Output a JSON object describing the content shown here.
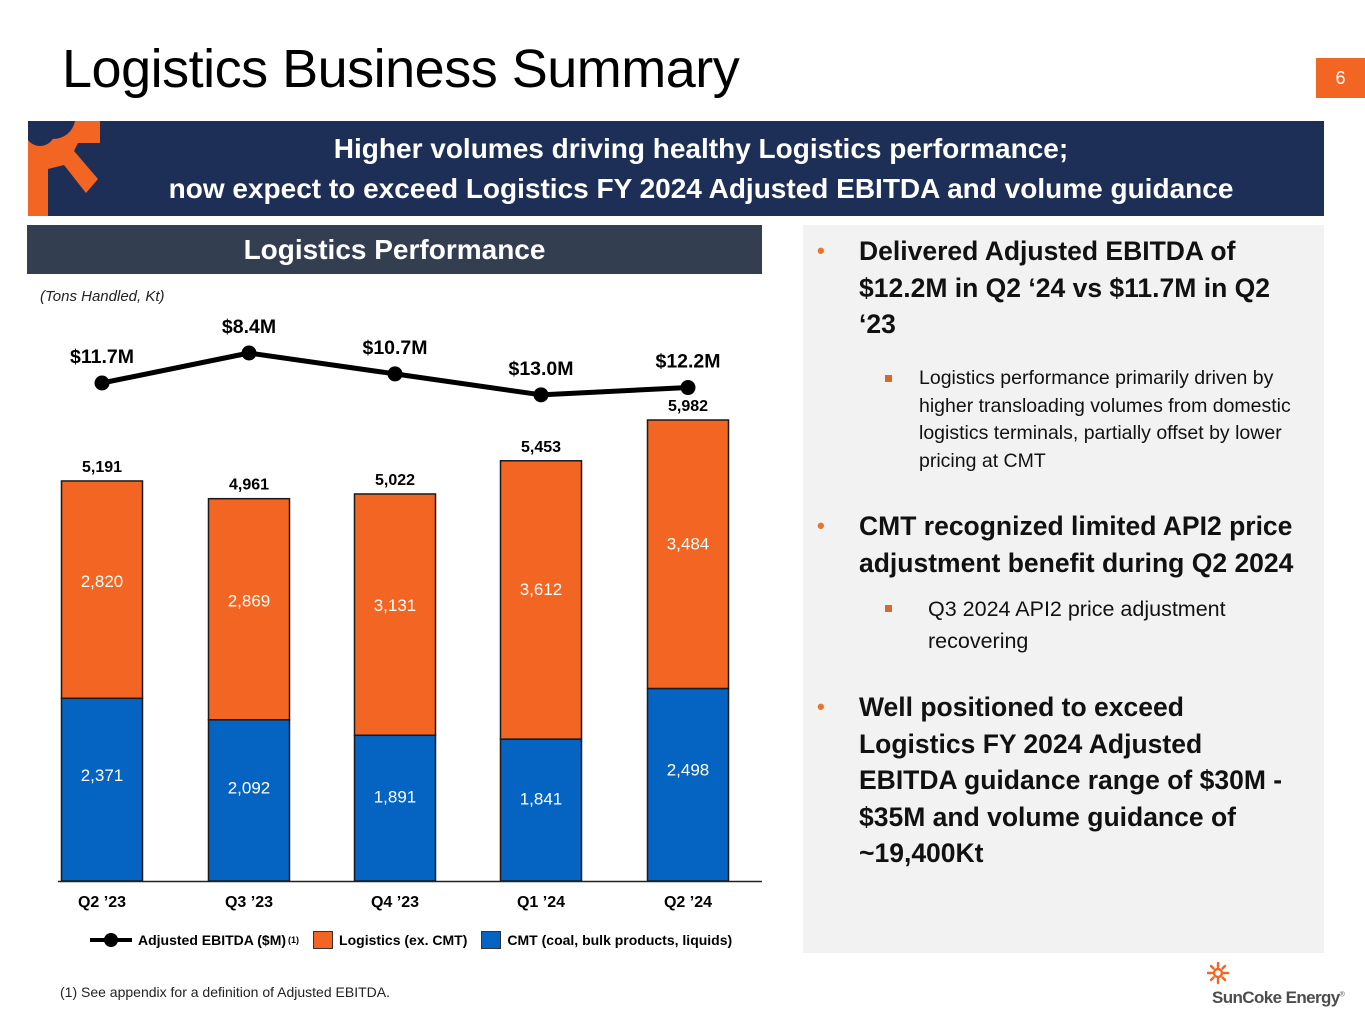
{
  "page": {
    "title": "Logistics Business Summary",
    "page_number": "6",
    "accent_color": "#f26522",
    "navy_color": "#1d2f57"
  },
  "banner": {
    "line1": "Higher volumes driving healthy Logistics performance;",
    "line2": "now expect to exceed Logistics FY 2024 Adjusted EBITDA and volume guidance"
  },
  "performance": {
    "header": "Logistics Performance",
    "units_label": "(Tons Handled, Kt)"
  },
  "chart_data": {
    "type": "bar",
    "stacked": true,
    "title": "Logistics Performance",
    "ylabel": "(Tons Handled, Kt)",
    "xlabel": "",
    "categories": [
      "Q2 ’23",
      "Q3 ’23",
      "Q4 ’23",
      "Q1 ’24",
      "Q2 ’24"
    ],
    "series": [
      {
        "name": "CMT (coal, bulk products, liquids)",
        "color": "#0563c1",
        "values": [
          2371,
          2092,
          1891,
          1841,
          2498
        ],
        "labels": [
          "2,371",
          "2,092",
          "1,891",
          "1,841",
          "2,498"
        ]
      },
      {
        "name": "Logistics (ex. CMT)",
        "color": "#f26522",
        "values": [
          2820,
          2869,
          3131,
          3612,
          3484
        ],
        "labels": [
          "2,820",
          "2,869",
          "3,131",
          "3,612",
          "3,484"
        ]
      }
    ],
    "totals": [
      5191,
      4961,
      5022,
      5453,
      5982
    ],
    "total_labels": [
      "5,191",
      "4,961",
      "5,022",
      "5,453",
      "5,982"
    ],
    "line_series": {
      "name": "Adjusted EBITDA ($M)",
      "footnote_ref": "(1)",
      "color": "#000000",
      "values": [
        11.7,
        8.4,
        10.7,
        13.0,
        12.2
      ],
      "labels": [
        "$11.7M",
        "$8.4M",
        "$10.7M",
        "$13.0M",
        "$12.2M"
      ]
    },
    "ylim": [
      0,
      6000
    ],
    "grid": false,
    "legend_position": "bottom"
  },
  "legend": {
    "ebitda": "Adjusted EBITDA ($M)",
    "ebitda_ref": "(1)",
    "logistics": "Logistics (ex. CMT)",
    "cmt": "CMT (coal, bulk products, liquids)"
  },
  "footnote": "(1)  See appendix for a definition of Adjusted EBITDA.",
  "bullets": [
    {
      "text": "Delivered Adjusted EBITDA of $12.2M in Q2 ‘24 vs $11.7M in Q2 ‘23",
      "sub": [
        "Logistics performance primarily driven by higher transloading volumes from domestic logistics terminals, partially offset by lower pricing at CMT"
      ]
    },
    {
      "text": "CMT recognized limited API2 price adjustment benefit during Q2 2024",
      "sub": [
        "Q3 2024 API2 price adjustment recovering"
      ]
    },
    {
      "text": "Well positioned to exceed Logistics FY 2024 Adjusted EBITDA guidance range of $30M - $35M and volume guidance of ~19,400Kt",
      "sub": []
    }
  ],
  "logo": {
    "name": "SunCoke Energy",
    "mark": "®"
  }
}
